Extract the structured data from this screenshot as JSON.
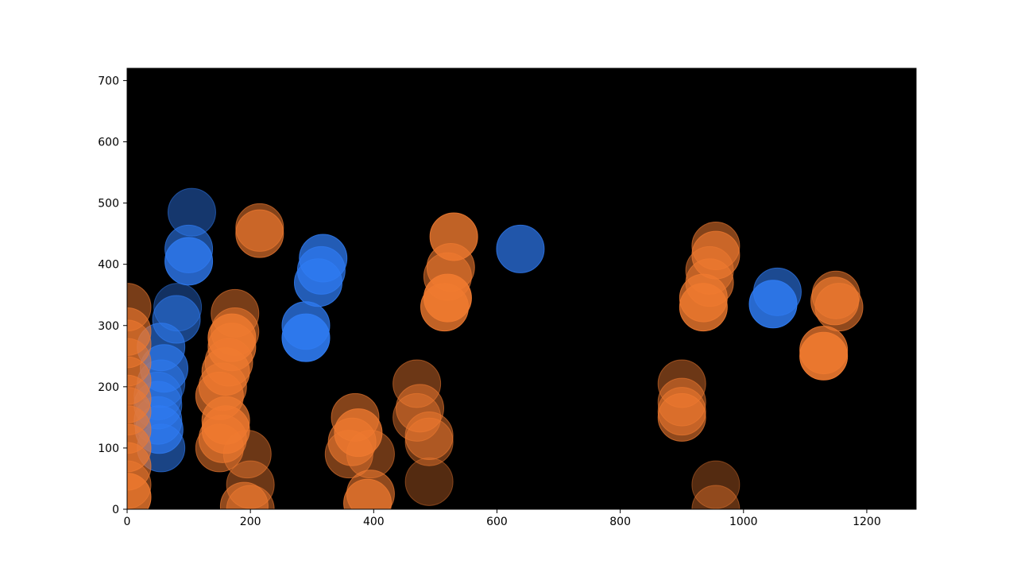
{
  "chart_data": {
    "type": "scatter",
    "title": "",
    "xlabel": "",
    "ylabel": "",
    "xlim": [
      0,
      1280
    ],
    "ylim": [
      0,
      720
    ],
    "xticks": [
      0,
      200,
      400,
      600,
      800,
      1000,
      1200
    ],
    "yticks": [
      0,
      100,
      200,
      300,
      400,
      500,
      600,
      700
    ],
    "background": "#000000",
    "grid": false,
    "legend": "none",
    "colors": {
      "blue": "#2f7bf2",
      "orange": "#f07a30",
      "brown": "#7a3e18"
    },
    "series": [
      {
        "color": "blue",
        "points": [
          [
            105,
            485,
            0.45
          ],
          [
            100,
            425,
            0.6
          ],
          [
            100,
            405,
            0.8
          ],
          [
            82,
            330,
            0.4
          ],
          [
            80,
            310,
            0.55
          ],
          [
            55,
            265,
            0.6
          ],
          [
            60,
            230,
            0.65
          ],
          [
            55,
            205,
            0.5
          ],
          [
            50,
            185,
            0.45
          ],
          [
            50,
            170,
            0.55
          ],
          [
            50,
            145,
            0.6
          ],
          [
            52,
            130,
            0.7
          ],
          [
            55,
            100,
            0.55
          ],
          [
            318,
            410,
            0.75
          ],
          [
            315,
            390,
            0.7
          ],
          [
            310,
            370,
            0.75
          ],
          [
            290,
            300,
            0.75
          ],
          [
            290,
            280,
            0.9
          ],
          [
            638,
            425,
            0.7
          ],
          [
            1055,
            355,
            0.6
          ],
          [
            1048,
            335,
            0.85
          ]
        ]
      },
      {
        "color": "orange",
        "points": [
          [
            0,
            330,
            0.5
          ],
          [
            0,
            290,
            0.6
          ],
          [
            0,
            270,
            0.55
          ],
          [
            0,
            240,
            0.5
          ],
          [
            0,
            210,
            0.55
          ],
          [
            0,
            180,
            0.6
          ],
          [
            0,
            160,
            0.5
          ],
          [
            0,
            130,
            0.55
          ],
          [
            0,
            100,
            0.65
          ],
          [
            0,
            70,
            0.6
          ],
          [
            0,
            40,
            0.5
          ],
          [
            0,
            20,
            0.8
          ],
          [
            175,
            320,
            0.5
          ],
          [
            175,
            290,
            0.55
          ],
          [
            170,
            280,
            0.8
          ],
          [
            170,
            265,
            0.7
          ],
          [
            165,
            240,
            0.6
          ],
          [
            160,
            225,
            0.7
          ],
          [
            155,
            200,
            0.6
          ],
          [
            150,
            185,
            0.65
          ],
          [
            160,
            145,
            0.7
          ],
          [
            160,
            130,
            0.75
          ],
          [
            155,
            115,
            0.6
          ],
          [
            150,
            100,
            0.55
          ],
          [
            195,
            90,
            0.45
          ],
          [
            200,
            40,
            0.45
          ],
          [
            190,
            5,
            0.6
          ],
          [
            200,
            0,
            0.5
          ],
          [
            215,
            460,
            0.55
          ],
          [
            215,
            450,
            0.65
          ],
          [
            370,
            150,
            0.55
          ],
          [
            375,
            125,
            0.75
          ],
          [
            365,
            110,
            0.6
          ],
          [
            360,
            90,
            0.5
          ],
          [
            395,
            90,
            0.45
          ],
          [
            395,
            25,
            0.6
          ],
          [
            390,
            10,
            0.7
          ],
          [
            470,
            205,
            0.45
          ],
          [
            475,
            165,
            0.5
          ],
          [
            470,
            150,
            0.45
          ],
          [
            490,
            120,
            0.5
          ],
          [
            490,
            110,
            0.45
          ],
          [
            490,
            45,
            0.35
          ],
          [
            530,
            445,
            0.8
          ],
          [
            525,
            395,
            0.6
          ],
          [
            520,
            380,
            0.55
          ],
          [
            520,
            345,
            0.9
          ],
          [
            515,
            330,
            0.8
          ],
          [
            955,
            430,
            0.55
          ],
          [
            955,
            415,
            0.65
          ],
          [
            945,
            390,
            0.5
          ],
          [
            945,
            370,
            0.6
          ],
          [
            935,
            345,
            0.7
          ],
          [
            935,
            330,
            0.8
          ],
          [
            900,
            205,
            0.45
          ],
          [
            900,
            175,
            0.5
          ],
          [
            900,
            160,
            0.55
          ],
          [
            900,
            150,
            0.6
          ],
          [
            955,
            40,
            0.35
          ],
          [
            955,
            0,
            0.4
          ],
          [
            1150,
            350,
            0.55
          ],
          [
            1148,
            340,
            0.7
          ],
          [
            1155,
            330,
            0.6
          ],
          [
            1130,
            260,
            0.75
          ],
          [
            1130,
            250,
            0.9
          ]
        ]
      }
    ]
  }
}
